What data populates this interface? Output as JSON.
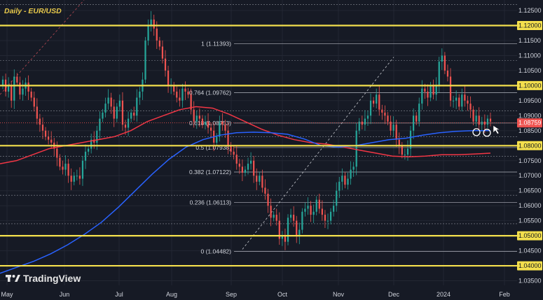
{
  "chart_data": {
    "type": "candlestick",
    "title": "Daily - EUR/USD",
    "brand": "TradingView",
    "ylim": [
      1.0335,
      1.1285
    ],
    "y_ticks": [
      "1.12500",
      "1.12000",
      "1.11500",
      "1.11000",
      "1.10500",
      "1.10000",
      "1.09500",
      "1.09000",
      "1.08500",
      "1.08000",
      "1.07500",
      "1.07000",
      "1.06500",
      "1.06000",
      "1.05500",
      "1.05000",
      "1.04500",
      "1.04000",
      "1.03500"
    ],
    "x_ticks": [
      "May",
      "Jun",
      "Jul",
      "Aug",
      "Sep",
      "Oct",
      "Nov",
      "Dec",
      "2024",
      "Feb"
    ],
    "current_price": "1.08759",
    "highlighted_levels": [
      1.12,
      1.1,
      1.08,
      1.05,
      1.04
    ],
    "thin_levels": [
      1.127,
      1.1083,
      1.0916,
      1.083,
      1.0765,
      1.0635,
      1.054
    ],
    "fib_levels": [
      {
        "label": "1 (1.11393)",
        "value": 1.11393
      },
      {
        "label": "0.764 (1.09762)",
        "value": 1.09762
      },
      {
        "label": "0.618 (1.08753)",
        "value": 1.08753
      },
      {
        "label": "0.5 (1.07938)",
        "value": 1.07938
      },
      {
        "label": "0.382 (1.07122)",
        "value": 1.07122
      },
      {
        "label": "0.236 (1.06113)",
        "value": 1.06113
      },
      {
        "label": "0 (1.04482)",
        "value": 1.04482
      }
    ],
    "closes": [
      1.102,
      1.098,
      1.1,
      1.095,
      1.103,
      1.101,
      1.097,
      1.099,
      1.101,
      1.098,
      1.096,
      1.093,
      1.089,
      1.087,
      1.085,
      1.083,
      1.082,
      1.081,
      1.079,
      1.076,
      1.073,
      1.072,
      1.074,
      1.07,
      1.068,
      1.07,
      1.07,
      1.069,
      1.075,
      1.078,
      1.079,
      1.082,
      1.081,
      1.085,
      1.089,
      1.091,
      1.094,
      1.096,
      1.093,
      1.089,
      1.093,
      1.095,
      1.087,
      1.086,
      1.089,
      1.091,
      1.09,
      1.096,
      1.098,
      1.102,
      1.115,
      1.12,
      1.122,
      1.119,
      1.115,
      1.113,
      1.109,
      1.105,
      1.1,
      1.1,
      1.098,
      1.096,
      1.095,
      1.099,
      1.098,
      1.097,
      1.092,
      1.088,
      1.09,
      1.089,
      1.087,
      1.088,
      1.086,
      1.085,
      1.081,
      1.083,
      1.088,
      1.087,
      1.085,
      1.08,
      1.078,
      1.077,
      1.074,
      1.073,
      1.071,
      1.072,
      1.074,
      1.075,
      1.07,
      1.068,
      1.07,
      1.066,
      1.064,
      1.06,
      1.056,
      1.057,
      1.055,
      1.049,
      1.05,
      1.048,
      1.056,
      1.057,
      1.055,
      1.05,
      1.052,
      1.058,
      1.059,
      1.06,
      1.057,
      1.058,
      1.062,
      1.059,
      1.057,
      1.055,
      1.055,
      1.058,
      1.06,
      1.065,
      1.068,
      1.07,
      1.067,
      1.069,
      1.072,
      1.073,
      1.085,
      1.088,
      1.087,
      1.089,
      1.09,
      1.095,
      1.094,
      1.097,
      1.092,
      1.091,
      1.09,
      1.088,
      1.085,
      1.087,
      1.082,
      1.08,
      1.077,
      1.077,
      1.079,
      1.085,
      1.09,
      1.088,
      1.094,
      1.099,
      1.098,
      1.096,
      1.1,
      1.097,
      1.1,
      1.108,
      1.11,
      1.105,
      1.103,
      1.095,
      1.095,
      1.096,
      1.093,
      1.097,
      1.095,
      1.094,
      1.092,
      1.088,
      1.09,
      1.087,
      1.088,
      1.087,
      1.089,
      1.088
    ],
    "series": [
      {
        "name": "",
        "color": "#f23645",
        "values": [
          1.074,
          1.075,
          1.077,
          1.079,
          1.08,
          1.081,
          1.082,
          1.083,
          1.085,
          1.088,
          1.09,
          1.092,
          1.093,
          1.0925,
          1.0905,
          1.088,
          1.0855,
          1.0835,
          1.082,
          1.081,
          1.0805,
          1.0795,
          1.0785,
          1.0775,
          1.0765,
          1.0763,
          1.0765,
          1.077,
          1.077,
          1.0772,
          1.0775
        ]
      },
      {
        "name": "",
        "color": "#2962ff",
        "values": [
          1.0375,
          1.0395,
          1.0415,
          1.044,
          1.047,
          1.0505,
          1.0545,
          1.0595,
          1.065,
          1.0705,
          1.0755,
          1.0795,
          1.082,
          1.0835,
          1.0843,
          1.0845,
          1.0843,
          1.0838,
          1.0822,
          1.08,
          1.0795,
          1.08,
          1.081,
          1.082,
          1.0825,
          1.0835,
          1.0843,
          1.0848,
          1.085,
          1.085
        ]
      }
    ],
    "grid": true,
    "legend": "none"
  }
}
